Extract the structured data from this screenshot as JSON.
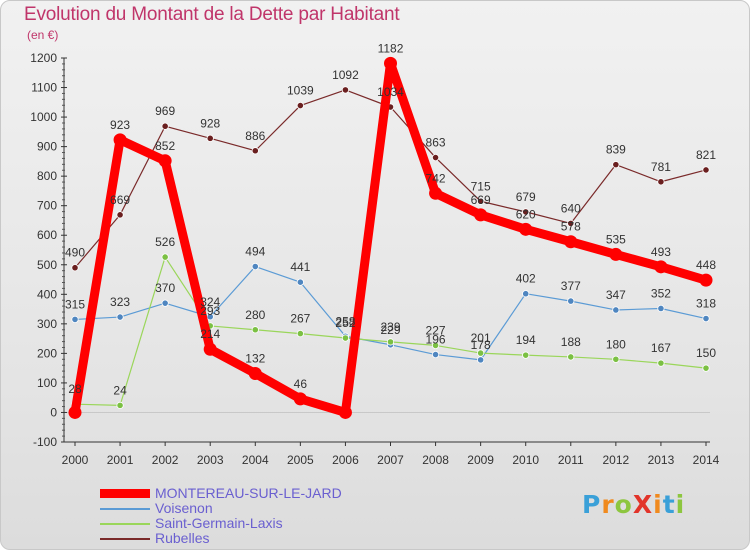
{
  "header": {
    "title": "Evolution du Montant de la Dette par Habitant",
    "subtitle": "(en €)"
  },
  "logo": {
    "text": "ProXiti",
    "colors": [
      "#3aa0d8",
      "#f08a1e",
      "#8dc63f",
      "#e2342a",
      "#f08a1e",
      "#3aa0d8",
      "#8dc63f"
    ]
  },
  "chart_data": {
    "type": "line",
    "title": "Evolution du Montant de la Dette par Habitant",
    "ylabel": "(en €)",
    "xlabel": "",
    "ylim": [
      -100,
      1200
    ],
    "y_ticks": [
      -100,
      0,
      100,
      200,
      300,
      400,
      500,
      600,
      700,
      800,
      900,
      1000,
      1100,
      1200
    ],
    "grid": false,
    "legend_position": "bottom-left",
    "categories": [
      "2000",
      "2001",
      "2002",
      "2003",
      "2004",
      "2005",
      "2006",
      "2007",
      "2008",
      "2009",
      "2010",
      "2011",
      "2012",
      "2013",
      "2014"
    ],
    "series": [
      {
        "name": "Rubelles",
        "color": "#7a2a2a",
        "marker": "#6a1f1f",
        "values": [
          490,
          669,
          969,
          928,
          886,
          1039,
          1092,
          1034,
          863,
          715,
          679,
          640,
          839,
          781,
          821
        ]
      },
      {
        "name": "Voisenon",
        "color": "#5b9bd5",
        "marker": "#4f86c0",
        "values": [
          315,
          323,
          370,
          324,
          494,
          441,
          258,
          229,
          196,
          178,
          402,
          377,
          347,
          352,
          318
        ]
      },
      {
        "name": "Saint-Germain-Laxis",
        "color": "#9ad65a",
        "marker": "#7bc043",
        "values": [
          28,
          24,
          526,
          293,
          280,
          267,
          252,
          239,
          227,
          201,
          194,
          188,
          180,
          167,
          150
        ]
      },
      {
        "name": "MONTEREAU-SUR-LE-JARD",
        "color": "#ff0000",
        "marker": "#ff0000",
        "values": [
          0,
          923,
          852,
          214,
          132,
          46,
          0,
          1182,
          742,
          669,
          620,
          578,
          535,
          493,
          448
        ],
        "labels": [
          "",
          "923",
          "852",
          "214",
          "132",
          "46",
          "",
          "1182",
          "742",
          "669",
          "620",
          "578",
          "535",
          "493",
          "448"
        ]
      }
    ],
    "legend_order": [
      "MONTEREAU-SUR-LE-JARD",
      "Voisenon",
      "Saint-Germain-Laxis",
      "Rubelles"
    ]
  }
}
